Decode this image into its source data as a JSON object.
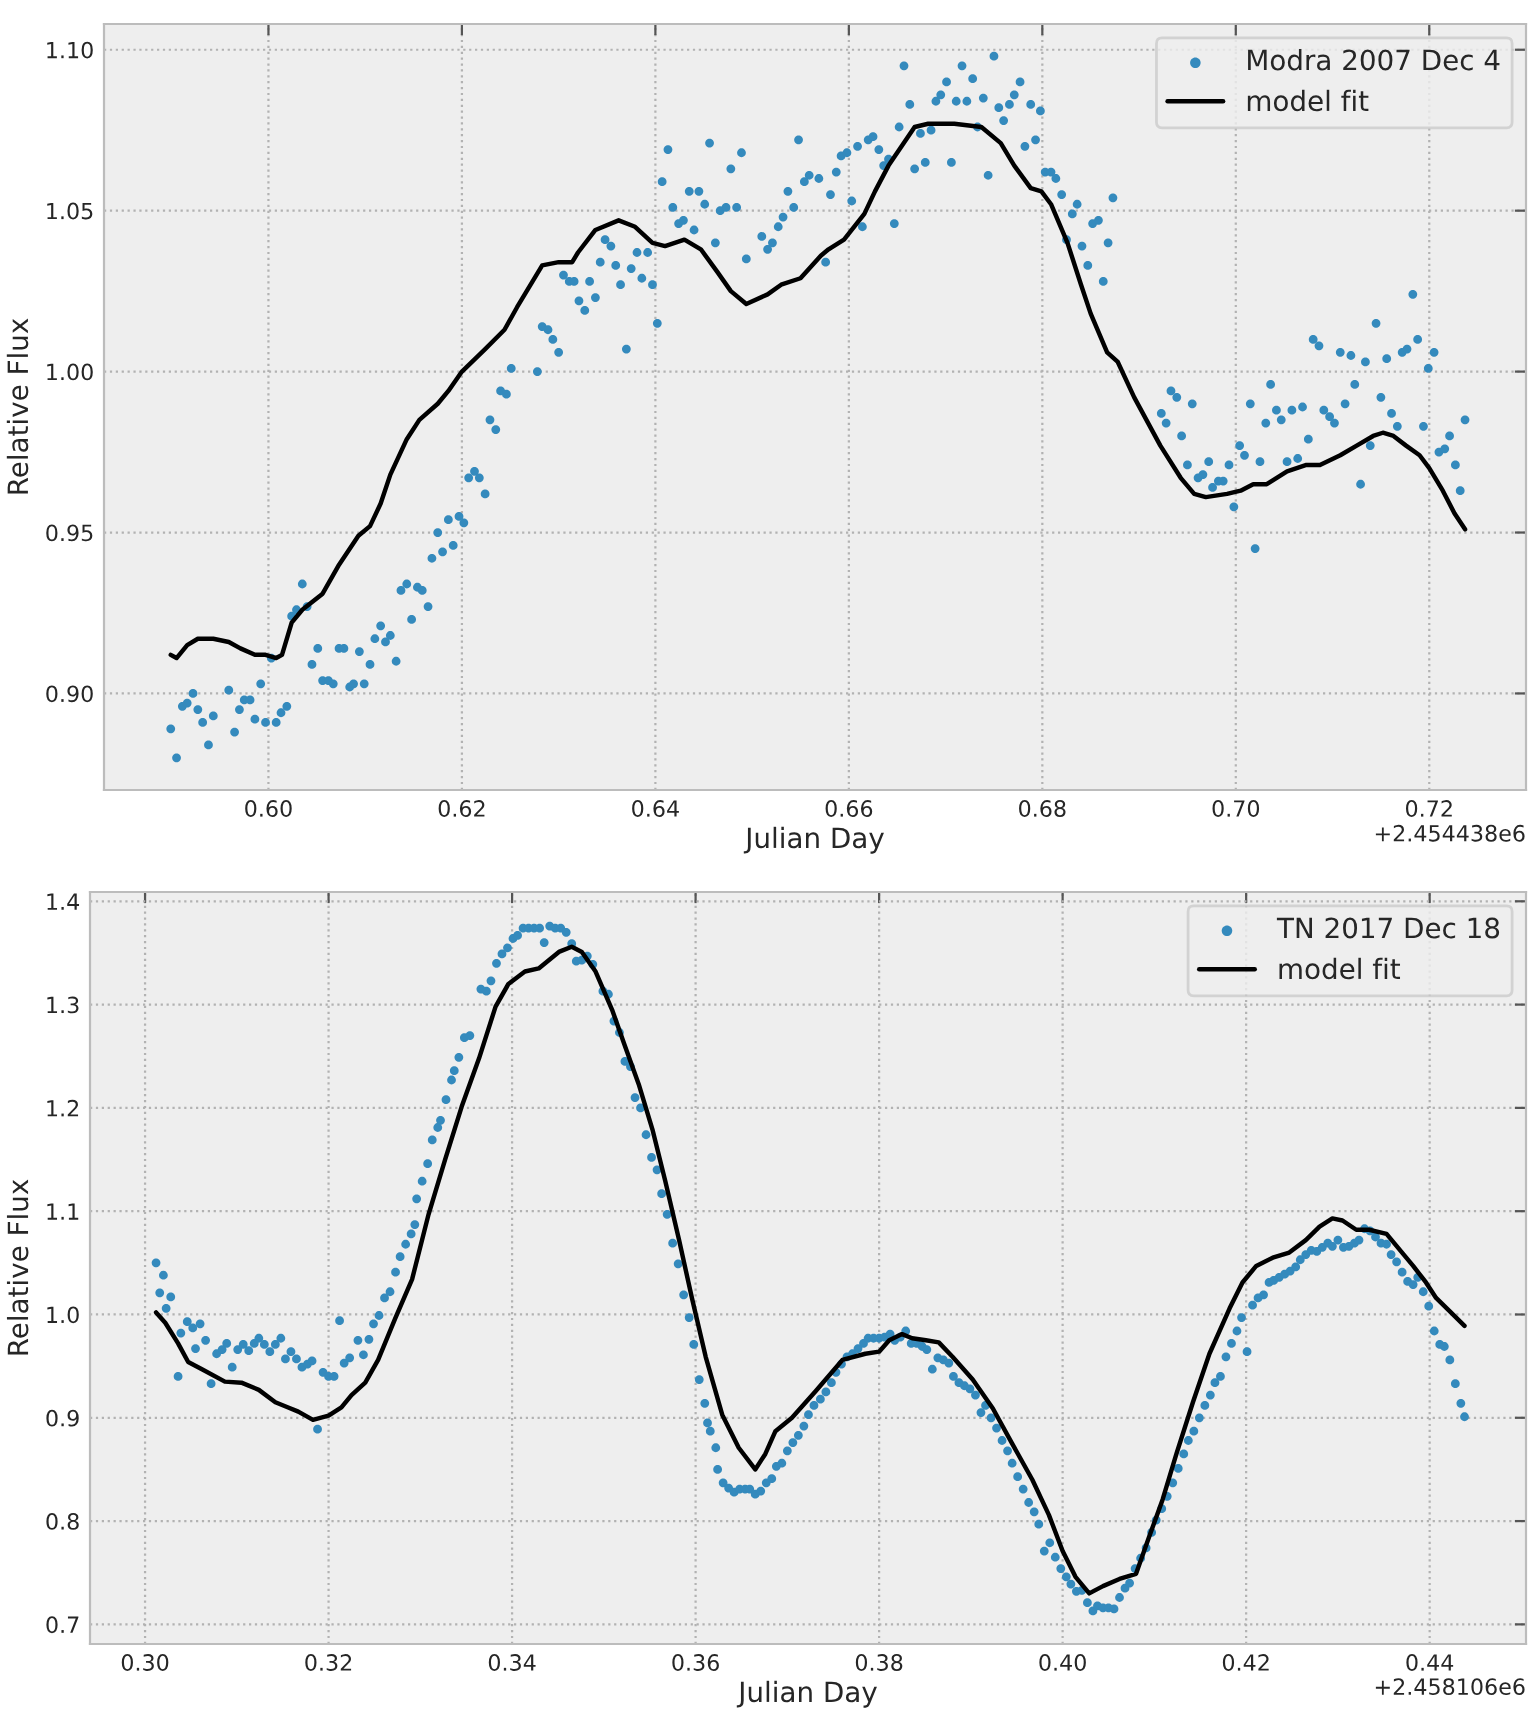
{
  "chart_data": [
    {
      "type": "scatter",
      "xlabel": "Julian Day",
      "ylabel": "Relative Flux",
      "annotations": [
        "+2.454438e6"
      ],
      "legend": "top right",
      "grid": true,
      "xlim": [
        0.583,
        0.73
      ],
      "ylim": [
        0.87,
        1.108
      ],
      "xticks": [
        {
          "value": 0.6,
          "label": "0.60"
        },
        {
          "value": 0.62,
          "label": "0.62"
        },
        {
          "value": 0.64,
          "label": "0.64"
        },
        {
          "value": 0.66,
          "label": "0.66"
        },
        {
          "value": 0.68,
          "label": "0.68"
        },
        {
          "value": 0.7,
          "label": "0.70"
        },
        {
          "value": 0.72,
          "label": "0.72"
        }
      ],
      "yticks": [
        {
          "value": 0.9,
          "label": "0.90"
        },
        {
          "value": 0.95,
          "label": "0.95"
        },
        {
          "value": 1.0,
          "label": "1.00"
        },
        {
          "value": 1.05,
          "label": "1.05"
        },
        {
          "value": 1.1,
          "label": "1.10"
        }
      ],
      "series": [
        {
          "name": "Modra 2007 Dec 4",
          "marker": "circle",
          "color": "#348abd",
          "x": [
            0.5899,
            0.5905,
            0.5911,
            0.5916,
            0.5922,
            0.5927,
            0.5932,
            0.5938,
            0.5943,
            0.5959,
            0.5965,
            0.597,
            0.5975,
            0.5981,
            0.5986,
            0.5992,
            0.5997,
            0.6003,
            0.6008,
            0.6013,
            0.6019,
            0.6024,
            0.6029,
            0.6035,
            0.604,
            0.6045,
            0.6051,
            0.6056,
            0.6062,
            0.6067,
            0.6073,
            0.6078,
            0.6084,
            0.6088,
            0.6094,
            0.6099,
            0.6105,
            0.611,
            0.6116,
            0.6121,
            0.6126,
            0.6132,
            0.6137,
            0.6143,
            0.6148,
            0.6154,
            0.6159,
            0.6165,
            0.6169,
            0.6175,
            0.618,
            0.6186,
            0.6191,
            0.6197,
            0.6202,
            0.6207,
            0.6213,
            0.6218,
            0.6224,
            0.6229,
            0.6235,
            0.624,
            0.6246,
            0.6251,
            0.6278,
            0.6283,
            0.6289,
            0.6294,
            0.63,
            0.6305,
            0.6311,
            0.6316,
            0.6321,
            0.6327,
            0.6332,
            0.6338,
            0.6343,
            0.6348,
            0.6354,
            0.6359,
            0.6364,
            0.637,
            0.6375,
            0.6381,
            0.6386,
            0.6392,
            0.6397,
            0.6402,
            0.6407,
            0.6413,
            0.6418,
            0.6424,
            0.6429,
            0.6435,
            0.644,
            0.6445,
            0.6451,
            0.6456,
            0.6462,
            0.6467,
            0.6473,
            0.6478,
            0.6484,
            0.6489,
            0.6494,
            0.651,
            0.6516,
            0.6521,
            0.6527,
            0.6532,
            0.6537,
            0.6543,
            0.6548,
            0.6554,
            0.6559,
            0.6569,
            0.6576,
            0.6581,
            0.6587,
            0.6592,
            0.6598,
            0.6603,
            0.6609,
            0.6614,
            0.662,
            0.6625,
            0.6631,
            0.6636,
            0.6641,
            0.6647,
            0.6652,
            0.6657,
            0.6663,
            0.6668,
            0.6674,
            0.6679,
            0.6685,
            0.669,
            0.6695,
            0.6701,
            0.6706,
            0.6711,
            0.6717,
            0.6722,
            0.6728,
            0.6733,
            0.6739,
            0.6744,
            0.675,
            0.6755,
            0.676,
            0.6766,
            0.6771,
            0.6777,
            0.6782,
            0.6788,
            0.6793,
            0.6798,
            0.6803,
            0.6809,
            0.6814,
            0.682,
            0.6825,
            0.6831,
            0.6836,
            0.6841,
            0.6847,
            0.6852,
            0.6858,
            0.6863,
            0.6868,
            0.6873,
            0.6923,
            0.6928,
            0.6933,
            0.6939,
            0.6944,
            0.695,
            0.6955,
            0.6961,
            0.6966,
            0.6972,
            0.6976,
            0.6982,
            0.6987,
            0.6993,
            0.6998,
            0.7004,
            0.7009,
            0.7015,
            0.702,
            0.7025,
            0.7031,
            0.7036,
            0.7042,
            0.7047,
            0.7053,
            0.7058,
            0.7064,
            0.7069,
            0.7075,
            0.708,
            0.7086,
            0.7091,
            0.7097,
            0.7102,
            0.7108,
            0.7113,
            0.7119,
            0.7123,
            0.7129,
            0.7134,
            0.7139,
            0.7145,
            0.715,
            0.7156,
            0.7161,
            0.7167,
            0.7172,
            0.7177,
            0.7183,
            0.7188,
            0.7194,
            0.7199,
            0.7205,
            0.721,
            0.7216,
            0.7221,
            0.7227,
            0.7232,
            0.7237
          ],
          "values": [
            0.889,
            0.88,
            0.896,
            0.897,
            0.9,
            0.895,
            0.891,
            0.884,
            0.893,
            0.901,
            0.888,
            0.895,
            0.898,
            0.898,
            0.892,
            0.903,
            0.891,
            0.911,
            0.891,
            0.894,
            0.896,
            0.924,
            0.926,
            0.934,
            0.927,
            0.909,
            0.914,
            0.904,
            0.904,
            0.903,
            0.914,
            0.914,
            0.902,
            0.903,
            0.913,
            0.903,
            0.909,
            0.917,
            0.921,
            0.916,
            0.918,
            0.91,
            0.932,
            0.934,
            0.923,
            0.933,
            0.932,
            0.927,
            0.942,
            0.95,
            0.944,
            0.954,
            0.946,
            0.955,
            0.953,
            0.967,
            0.969,
            0.967,
            0.962,
            0.985,
            0.982,
            0.994,
            0.993,
            1.001,
            1.0,
            1.014,
            1.013,
            1.01,
            1.006,
            1.03,
            1.028,
            1.028,
            1.022,
            1.019,
            1.028,
            1.023,
            1.034,
            1.041,
            1.039,
            1.033,
            1.027,
            1.007,
            1.032,
            1.037,
            1.029,
            1.037,
            1.027,
            1.015,
            1.059,
            1.069,
            1.051,
            1.046,
            1.047,
            1.056,
            1.044,
            1.056,
            1.052,
            1.071,
            1.04,
            1.05,
            1.051,
            1.063,
            1.051,
            1.068,
            1.035,
            1.042,
            1.038,
            1.04,
            1.045,
            1.048,
            1.056,
            1.051,
            1.072,
            1.059,
            1.061,
            1.06,
            1.034,
            1.055,
            1.062,
            1.067,
            1.068,
            1.053,
            1.07,
            1.045,
            1.072,
            1.073,
            1.069,
            1.064,
            1.066,
            1.046,
            1.076,
            1.095,
            1.083,
            1.063,
            1.074,
            1.065,
            1.075,
            1.084,
            1.086,
            1.09,
            1.065,
            1.084,
            1.095,
            1.084,
            1.091,
            1.076,
            1.085,
            1.061,
            1.098,
            1.082,
            1.078,
            1.083,
            1.086,
            1.09,
            1.07,
            1.083,
            1.072,
            1.081,
            1.062,
            1.062,
            1.06,
            1.055,
            1.041,
            1.049,
            1.052,
            1.039,
            1.033,
            1.046,
            1.047,
            1.028,
            1.04,
            1.054,
            0.987,
            0.984,
            0.994,
            0.992,
            0.98,
            0.971,
            0.99,
            0.967,
            0.968,
            0.972,
            0.964,
            0.966,
            0.966,
            0.971,
            0.958,
            0.977,
            0.974,
            0.99,
            0.945,
            0.972,
            0.984,
            0.996,
            0.988,
            0.985,
            0.972,
            0.988,
            0.973,
            0.989,
            0.979,
            1.01,
            1.008,
            0.988,
            0.986,
            0.984,
            1.006,
            0.99,
            1.005,
            0.996,
            0.965,
            1.003,
            0.977,
            1.015,
            0.992,
            1.004,
            0.987,
            0.983,
            1.006,
            1.007,
            1.024,
            1.01,
            0.983,
            1.001,
            1.006,
            0.975,
            0.976,
            0.98,
            0.971,
            0.963,
            0.985
          ]
        },
        {
          "name": "model fit",
          "type": "line",
          "line_style": "solid",
          "color": "#000000",
          "x": [
            0.5899,
            0.5905,
            0.5916,
            0.5927,
            0.5943,
            0.5959,
            0.5971,
            0.5986,
            0.5997,
            0.6008,
            0.6014,
            0.6024,
            0.6035,
            0.6056,
            0.6073,
            0.6093,
            0.6105,
            0.6116,
            0.6126,
            0.6143,
            0.6156,
            0.6175,
            0.6186,
            0.62,
            0.6224,
            0.6244,
            0.6257,
            0.6283,
            0.63,
            0.6314,
            0.632,
            0.6338,
            0.6362,
            0.6379,
            0.6397,
            0.641,
            0.643,
            0.6447,
            0.6464,
            0.6478,
            0.6494,
            0.6516,
            0.653,
            0.655,
            0.6571,
            0.6579,
            0.6595,
            0.6616,
            0.6627,
            0.6641,
            0.6668,
            0.6682,
            0.6709,
            0.6737,
            0.6757,
            0.6771,
            0.6788,
            0.6799,
            0.6809,
            0.6826,
            0.684,
            0.685,
            0.6867,
            0.6878,
            0.6895,
            0.6922,
            0.6943,
            0.6957,
            0.6969,
            0.6991,
            0.7005,
            0.7018,
            0.7032,
            0.7053,
            0.7073,
            0.7087,
            0.7108,
            0.7125,
            0.7142,
            0.7152,
            0.7163,
            0.7176,
            0.719,
            0.72,
            0.7214,
            0.7226,
            0.7237
          ],
          "values": [
            0.912,
            0.911,
            0.915,
            0.917,
            0.917,
            0.916,
            0.914,
            0.912,
            0.912,
            0.911,
            0.912,
            0.922,
            0.926,
            0.931,
            0.94,
            0.949,
            0.952,
            0.959,
            0.968,
            0.979,
            0.985,
            0.99,
            0.994,
            1.0,
            1.007,
            1.013,
            1.02,
            1.033,
            1.034,
            1.034,
            1.037,
            1.044,
            1.047,
            1.045,
            1.04,
            1.039,
            1.041,
            1.038,
            1.031,
            1.025,
            1.021,
            1.024,
            1.027,
            1.029,
            1.036,
            1.038,
            1.041,
            1.049,
            1.056,
            1.064,
            1.076,
            1.077,
            1.077,
            1.076,
            1.071,
            1.064,
            1.057,
            1.056,
            1.052,
            1.04,
            1.027,
            1.018,
            1.006,
            1.003,
            0.992,
            0.977,
            0.967,
            0.962,
            0.961,
            0.962,
            0.963,
            0.965,
            0.965,
            0.969,
            0.971,
            0.971,
            0.974,
            0.977,
            0.98,
            0.981,
            0.98,
            0.977,
            0.974,
            0.97,
            0.963,
            0.956,
            0.951
          ]
        }
      ]
    },
    {
      "type": "scatter",
      "xlabel": "Julian Day",
      "ylabel": "Relative Flux",
      "annotations": [
        "+2.458106e6"
      ],
      "legend": "top right",
      "grid": true,
      "xlim": [
        0.294,
        0.4505
      ],
      "ylim": [
        0.681,
        1.409
      ],
      "xticks": [
        {
          "value": 0.3,
          "label": "0.30"
        },
        {
          "value": 0.32,
          "label": "0.32"
        },
        {
          "value": 0.34,
          "label": "0.34"
        },
        {
          "value": 0.36,
          "label": "0.36"
        },
        {
          "value": 0.38,
          "label": "0.38"
        },
        {
          "value": 0.4,
          "label": "0.40"
        },
        {
          "value": 0.42,
          "label": "0.42"
        },
        {
          "value": 0.44,
          "label": "0.44"
        }
      ],
      "yticks": [
        {
          "value": 0.7,
          "label": "0.7"
        },
        {
          "value": 0.8,
          "label": "0.8"
        },
        {
          "value": 0.9,
          "label": "0.9"
        },
        {
          "value": 1.0,
          "label": "1.0"
        },
        {
          "value": 1.1,
          "label": "1.1"
        },
        {
          "value": 1.2,
          "label": "1.2"
        },
        {
          "value": 1.3,
          "label": "1.3"
        },
        {
          "value": 1.4,
          "label": "1.4"
        }
      ],
      "series": [
        {
          "name": "TN 2017 Dec 18",
          "marker": "circle",
          "color": "#348abd",
          "x": [
            0.3012,
            0.3016,
            0.302,
            0.3023,
            0.3028,
            0.3036,
            0.3039,
            0.3046,
            0.3052,
            0.3055,
            0.306,
            0.3066,
            0.3072,
            0.3078,
            0.3084,
            0.3089,
            0.3095,
            0.3101,
            0.3107,
            0.3113,
            0.3119,
            0.3124,
            0.313,
            0.3136,
            0.3142,
            0.3148,
            0.3153,
            0.3159,
            0.3165,
            0.3171,
            0.3177,
            0.3182,
            0.3188,
            0.3194,
            0.32,
            0.3206,
            0.3212,
            0.3217,
            0.3223,
            0.3232,
            0.3238,
            0.3244,
            0.3249,
            0.3255,
            0.3261,
            0.3267,
            0.3273,
            0.3278,
            0.3284,
            0.329,
            0.3294,
            0.3296,
            0.3302,
            0.3308,
            0.3313,
            0.3319,
            0.3322,
            0.3328,
            0.3334,
            0.3337,
            0.3342,
            0.3348,
            0.3354,
            0.3366,
            0.3372,
            0.3377,
            0.3383,
            0.3389,
            0.3395,
            0.3401,
            0.3406,
            0.3412,
            0.3418,
            0.3424,
            0.343,
            0.3435,
            0.3441,
            0.3447,
            0.3453,
            0.3459,
            0.3465,
            0.347,
            0.3476,
            0.3482,
            0.3488,
            0.3499,
            0.3505,
            0.3511,
            0.3517,
            0.3523,
            0.3529,
            0.3534,
            0.354,
            0.3546,
            0.3552,
            0.3558,
            0.3563,
            0.3569,
            0.3575,
            0.3581,
            0.3587,
            0.3593,
            0.3598,
            0.3604,
            0.361,
            0.3613,
            0.3616,
            0.3622,
            0.3624,
            0.363,
            0.3636,
            0.3642,
            0.3648,
            0.3654,
            0.3659,
            0.3665,
            0.3671,
            0.3677,
            0.3683,
            0.3688,
            0.3694,
            0.37,
            0.3706,
            0.3712,
            0.3718,
            0.3723,
            0.3729,
            0.3736,
            0.3742,
            0.3748,
            0.3753,
            0.3759,
            0.3765,
            0.3771,
            0.3777,
            0.3783,
            0.3788,
            0.3794,
            0.38,
            0.3806,
            0.3812,
            0.3817,
            0.3823,
            0.3829,
            0.3835,
            0.3841,
            0.3847,
            0.3852,
            0.3858,
            0.3864,
            0.387,
            0.3876,
            0.3881,
            0.3887,
            0.3893,
            0.3899,
            0.3905,
            0.3911,
            0.3916,
            0.3922,
            0.3928,
            0.3934,
            0.394,
            0.3945,
            0.3951,
            0.3957,
            0.3963,
            0.3969,
            0.3974,
            0.398,
            0.3986,
            0.3992,
            0.3998,
            0.4004,
            0.4009,
            0.4015,
            0.4021,
            0.4027,
            0.4033,
            0.4038,
            0.4044,
            0.405,
            0.4056,
            0.4062,
            0.4068,
            0.4073,
            0.4079,
            0.4085,
            0.4091,
            0.4097,
            0.4102,
            0.4108,
            0.4114,
            0.412,
            0.4126,
            0.4132,
            0.4137,
            0.4143,
            0.4149,
            0.4155,
            0.4161,
            0.4166,
            0.4172,
            0.4178,
            0.4184,
            0.419,
            0.4195,
            0.4201,
            0.4207,
            0.4213,
            0.4219,
            0.4225,
            0.423,
            0.4236,
            0.4242,
            0.4248,
            0.4254,
            0.4259,
            0.4265,
            0.4271,
            0.4277,
            0.4283,
            0.4289,
            0.4294,
            0.43,
            0.4306,
            0.4312,
            0.4318,
            0.4323,
            0.4329,
            0.4335,
            0.4341,
            0.4347,
            0.4353,
            0.4358,
            0.4364,
            0.437,
            0.4376,
            0.4382,
            0.4387,
            0.4393,
            0.4399,
            0.4405,
            0.4411,
            0.4416,
            0.4422,
            0.4428,
            0.4434,
            0.4438
          ],
          "values": [
            1.05,
            1.021,
            1.038,
            1.006,
            1.017,
            0.94,
            0.982,
            0.993,
            0.987,
            0.967,
            0.991,
            0.975,
            0.933,
            0.962,
            0.966,
            0.972,
            0.949,
            0.966,
            0.971,
            0.965,
            0.972,
            0.977,
            0.971,
            0.964,
            0.971,
            0.977,
            0.957,
            0.964,
            0.957,
            0.949,
            0.952,
            0.955,
            0.889,
            0.944,
            0.94,
            0.94,
            0.994,
            0.953,
            0.958,
            0.975,
            0.961,
            0.976,
            0.991,
            0.999,
            1.016,
            1.022,
            1.041,
            1.056,
            1.068,
            1.078,
            1.087,
            1.112,
            1.129,
            1.146,
            1.169,
            1.181,
            1.188,
            1.208,
            1.227,
            1.236,
            1.249,
            1.268,
            1.27,
            1.315,
            1.313,
            1.323,
            1.34,
            1.349,
            1.355,
            1.364,
            1.367,
            1.374,
            1.374,
            1.374,
            1.374,
            1.36,
            1.376,
            1.374,
            1.374,
            1.37,
            1.359,
            1.342,
            1.343,
            1.347,
            1.339,
            1.313,
            1.31,
            1.284,
            1.273,
            1.245,
            1.24,
            1.21,
            1.2,
            1.174,
            1.152,
            1.14,
            1.117,
            1.097,
            1.069,
            1.049,
            1.019,
            0.997,
            0.971,
            0.937,
            0.914,
            0.895,
            0.887,
            0.871,
            0.85,
            0.837,
            0.832,
            0.828,
            0.831,
            0.831,
            0.831,
            0.826,
            0.829,
            0.837,
            0.841,
            0.853,
            0.856,
            0.868,
            0.876,
            0.883,
            0.892,
            0.903,
            0.912,
            0.918,
            0.925,
            0.934,
            0.944,
            0.952,
            0.959,
            0.962,
            0.967,
            0.972,
            0.977,
            0.977,
            0.977,
            0.978,
            0.981,
            0.975,
            0.978,
            0.984,
            0.972,
            0.972,
            0.969,
            0.966,
            0.947,
            0.958,
            0.956,
            0.953,
            0.94,
            0.934,
            0.931,
            0.928,
            0.922,
            0.905,
            0.912,
            0.9,
            0.89,
            0.878,
            0.868,
            0.856,
            0.843,
            0.831,
            0.818,
            0.809,
            0.797,
            0.771,
            0.779,
            0.765,
            0.754,
            0.746,
            0.739,
            0.732,
            0.733,
            0.721,
            0.713,
            0.718,
            0.716,
            0.716,
            0.715,
            0.726,
            0.735,
            0.74,
            0.754,
            0.764,
            0.774,
            0.789,
            0.801,
            0.812,
            0.824,
            0.837,
            0.851,
            0.865,
            0.878,
            0.887,
            0.9,
            0.912,
            0.922,
            0.934,
            0.94,
            0.959,
            0.972,
            0.984,
            0.997,
            0.964,
            1.009,
            1.016,
            1.019,
            1.031,
            1.033,
            1.036,
            1.039,
            1.042,
            1.046,
            1.053,
            1.058,
            1.062,
            1.061,
            1.065,
            1.069,
            1.066,
            1.072,
            1.065,
            1.066,
            1.069,
            1.072,
            1.083,
            1.081,
            1.075,
            1.069,
            1.068,
            1.058,
            1.051,
            1.041,
            1.032,
            1.029,
            1.036,
            1.022,
            1.008,
            0.984,
            0.971,
            0.969,
            0.956,
            0.933,
            0.914,
            0.901
          ]
        },
        {
          "name": "model fit",
          "type": "line",
          "line_style": "solid",
          "color": "#000000",
          "x": [
            0.3012,
            0.3022,
            0.3036,
            0.3047,
            0.3062,
            0.3087,
            0.3105,
            0.3124,
            0.3142,
            0.3156,
            0.3167,
            0.3183,
            0.32,
            0.3214,
            0.3225,
            0.324,
            0.3254,
            0.3273,
            0.3291,
            0.3309,
            0.3327,
            0.3345,
            0.3364,
            0.3382,
            0.3396,
            0.3414,
            0.3429,
            0.3451,
            0.3465,
            0.3476,
            0.3491,
            0.3509,
            0.3523,
            0.3538,
            0.3553,
            0.3567,
            0.3582,
            0.3596,
            0.3611,
            0.3629,
            0.3647,
            0.3665,
            0.3676,
            0.3687,
            0.3705,
            0.3731,
            0.376,
            0.3785,
            0.38,
            0.3811,
            0.3825,
            0.3836,
            0.3851,
            0.3865,
            0.388,
            0.3902,
            0.3924,
            0.3945,
            0.3967,
            0.3985,
            0.4,
            0.4014,
            0.4029,
            0.4044,
            0.4062,
            0.408,
            0.4094,
            0.4109,
            0.4124,
            0.4142,
            0.416,
            0.4182,
            0.4196,
            0.4211,
            0.4229,
            0.4247,
            0.4265,
            0.428,
            0.4294,
            0.4305,
            0.432,
            0.4334,
            0.4353,
            0.4367,
            0.4382,
            0.4396,
            0.4407,
            0.4422,
            0.4438
          ],
          "values": [
            1.002,
            0.992,
            0.972,
            0.954,
            0.947,
            0.935,
            0.934,
            0.927,
            0.915,
            0.91,
            0.906,
            0.898,
            0.902,
            0.91,
            0.922,
            0.934,
            0.956,
            0.997,
            1.034,
            1.097,
            1.15,
            1.201,
            1.248,
            1.298,
            1.32,
            1.332,
            1.335,
            1.351,
            1.356,
            1.351,
            1.332,
            1.295,
            1.26,
            1.223,
            1.179,
            1.129,
            1.072,
            1.016,
            0.959,
            0.903,
            0.871,
            0.85,
            0.865,
            0.887,
            0.9,
            0.926,
            0.956,
            0.962,
            0.964,
            0.975,
            0.981,
            0.977,
            0.975,
            0.973,
            0.959,
            0.937,
            0.909,
            0.875,
            0.84,
            0.806,
            0.771,
            0.746,
            0.73,
            0.737,
            0.744,
            0.749,
            0.784,
            0.821,
            0.865,
            0.915,
            0.962,
            1.006,
            1.031,
            1.047,
            1.055,
            1.06,
            1.072,
            1.085,
            1.093,
            1.091,
            1.082,
            1.082,
            1.078,
            1.063,
            1.047,
            1.031,
            1.016,
            1.003,
            0.989
          ]
        }
      ]
    }
  ]
}
